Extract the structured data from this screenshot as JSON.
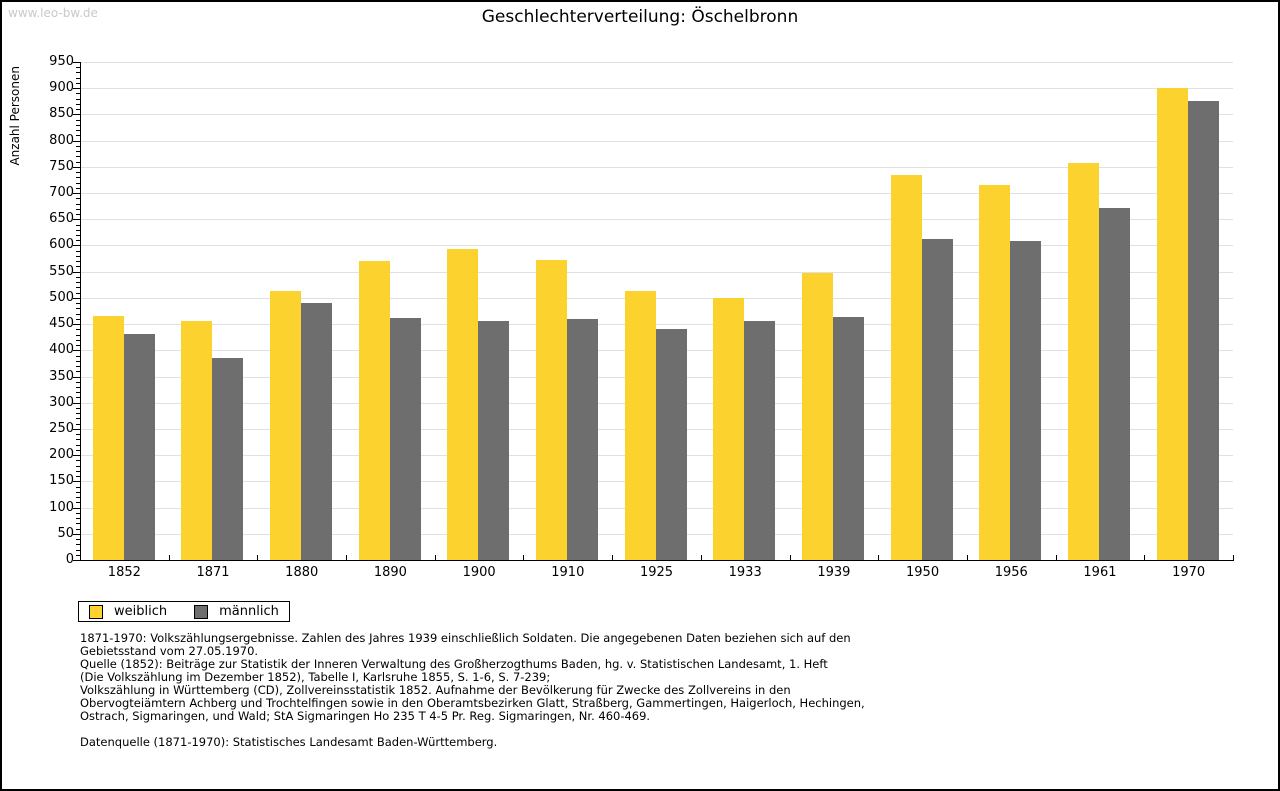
{
  "page": {
    "watermark": "www.leo-bw.de",
    "notes": "1871-1970: Volkszählungsergebnisse. Zahlen des Jahres 1939 einschließlich Soldaten. Die angegebenen Daten beziehen sich auf den\nGebietsstand vom 27.05.1970.\nQuelle (1852): Beiträge zur Statistik der Inneren Verwaltung des Großherzogthums Baden, hg. v. Statistischen Landesamt, 1. Heft\n(Die Volkszählung im Dezember 1852), Tabelle I, Karlsruhe 1855, S. 1-6, S. 7-239;\nVolkszählung in Württemberg (CD), Zollvereinsstatistik 1852. Aufnahme der Bevölkerung für Zwecke des Zollvereins in den\nObervogteiämtern Achberg und Trochtelfingen sowie in den Oberamtsbezirken Glatt, Straßberg, Gammertingen, Haigerloch, Hechingen,\nOstrach, Sigmaringen, und Wald; StA Sigmaringen Ho 235 T 4-5 Pr. Reg. Sigmaringen, Nr. 460-469.",
    "datasource": "Datenquelle (1871-1970): Statistisches Landesamt Baden-Württemberg."
  },
  "chart_data": {
    "type": "bar",
    "title": "Geschlechterverteilung: Öschelbronn",
    "xlabel": "",
    "ylabel": "Anzahl Personen",
    "categories": [
      "1852",
      "1871",
      "1880",
      "1890",
      "1900",
      "1910",
      "1925",
      "1933",
      "1939",
      "1950",
      "1956",
      "1961",
      "1970"
    ],
    "series": [
      {
        "name": "weiblich",
        "color": "#FCD32E",
        "values": [
          465,
          456,
          513,
          570,
          593,
          573,
          514,
          500,
          547,
          735,
          716,
          757,
          900
        ]
      },
      {
        "name": "männlich",
        "color": "#6E6E6E",
        "values": [
          432,
          386,
          491,
          462,
          455,
          460,
          441,
          456,
          463,
          613,
          609,
          672,
          875
        ]
      }
    ],
    "ylim": [
      0,
      950
    ],
    "ytick_step": 50,
    "y_minor_tick_step": 10,
    "grid": "horizontal",
    "legend_position": "bottom-left",
    "gridline_color": "#e0e0e0"
  }
}
